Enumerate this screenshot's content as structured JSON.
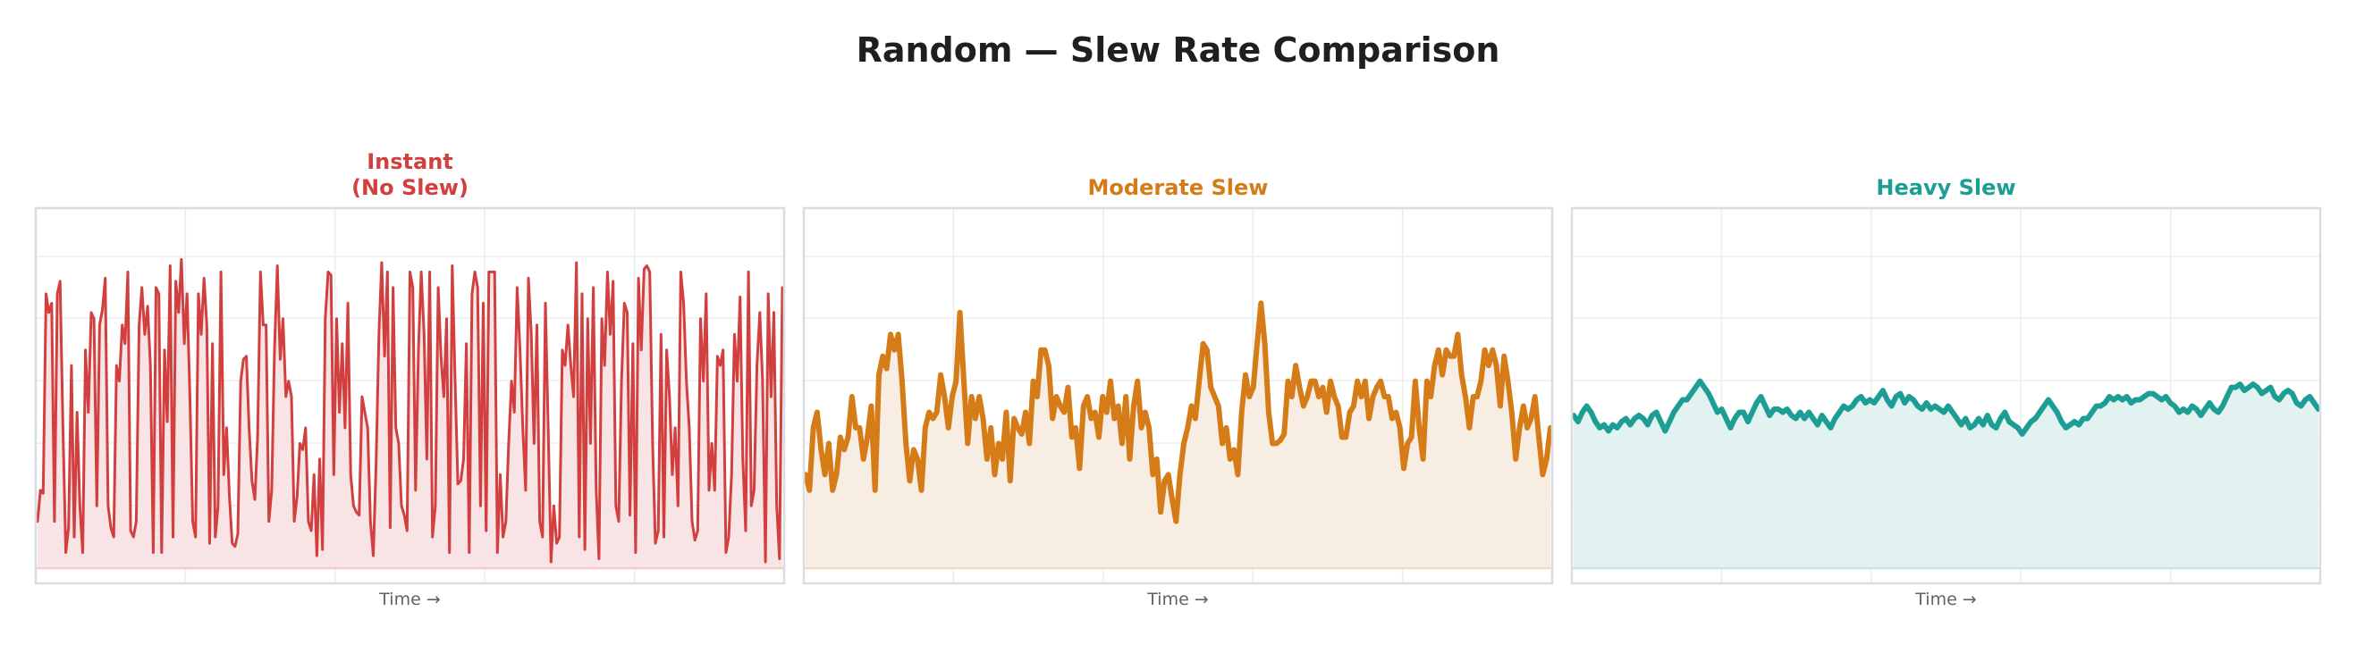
{
  "title": "Random — Slew Rate Comparison",
  "chart_data": [
    {
      "type": "line",
      "title": "Instant\n(No Slew)",
      "title_lines": [
        "Instant",
        "(No Slew)"
      ],
      "color": "#d13f3f",
      "fill": "#f8e4e5",
      "xlabel": "Time →",
      "ylabel": "",
      "ylim": [
        0,
        1
      ],
      "grid": true,
      "line_width": 3,
      "values": [
        0.15,
        0.25,
        0.24,
        0.88,
        0.82,
        0.85,
        0.15,
        0.88,
        0.92,
        0.45,
        0.05,
        0.13,
        0.65,
        0.1,
        0.5,
        0.2,
        0.05,
        0.7,
        0.5,
        0.82,
        0.8,
        0.2,
        0.78,
        0.83,
        0.93,
        0.2,
        0.13,
        0.1,
        0.65,
        0.6,
        0.78,
        0.72,
        0.95,
        0.12,
        0.1,
        0.15,
        0.78,
        0.9,
        0.75,
        0.84,
        0.65,
        0.05,
        0.9,
        0.88,
        0.05,
        0.7,
        0.47,
        0.97,
        0.1,
        0.92,
        0.82,
        0.99,
        0.72,
        0.88,
        0.55,
        0.15,
        0.1,
        0.88,
        0.75,
        0.93,
        0.78,
        0.08,
        0.72,
        0.1,
        0.2,
        0.95,
        0.3,
        0.45,
        0.23,
        0.08,
        0.07,
        0.11,
        0.6,
        0.67,
        0.68,
        0.45,
        0.28,
        0.22,
        0.42,
        0.95,
        0.78,
        0.78,
        0.15,
        0.25,
        0.7,
        0.97,
        0.67,
        0.8,
        0.55,
        0.6,
        0.55,
        0.15,
        0.23,
        0.4,
        0.38,
        0.45,
        0.15,
        0.12,
        0.3,
        0.04,
        0.35,
        0.06,
        0.8,
        0.95,
        0.94,
        0.3,
        0.8,
        0.5,
        0.72,
        0.45,
        0.85,
        0.3,
        0.2,
        0.18,
        0.17,
        0.55,
        0.5,
        0.45,
        0.15,
        0.04,
        0.33,
        0.75,
        0.98,
        0.68,
        0.95,
        0.13,
        0.9,
        0.45,
        0.4,
        0.2,
        0.17,
        0.12,
        0.95,
        0.9,
        0.25,
        0.7,
        0.95,
        0.75,
        0.35,
        0.95,
        0.1,
        0.2,
        0.9,
        0.68,
        0.55,
        0.8,
        0.05,
        0.97,
        0.6,
        0.27,
        0.28,
        0.35,
        0.72,
        0.05,
        0.88,
        0.95,
        0.9,
        0.2,
        0.85,
        0.12,
        0.95,
        0.95,
        0.95,
        0.05,
        0.3,
        0.1,
        0.15,
        0.4,
        0.6,
        0.5,
        0.9,
        0.7,
        0.45,
        0.25,
        0.93,
        0.75,
        0.4,
        0.78,
        0.15,
        0.1,
        0.85,
        0.45,
        0.02,
        0.2,
        0.08,
        0.1,
        0.7,
        0.65,
        0.78,
        0.65,
        0.55,
        0.98,
        0.1,
        0.88,
        0.06,
        0.8,
        0.4,
        0.9,
        0.25,
        0.03,
        0.8,
        0.65,
        0.95,
        0.75,
        0.92,
        0.2,
        0.15,
        0.6,
        0.85,
        0.82,
        0.17,
        0.72,
        0.05,
        0.93,
        0.7,
        0.96,
        0.97,
        0.95,
        0.4,
        0.08,
        0.12,
        0.75,
        0.1,
        0.7,
        0.55,
        0.3,
        0.45,
        0.2,
        0.95,
        0.85,
        0.6,
        0.45,
        0.15,
        0.09,
        0.12,
        0.8,
        0.6,
        0.88,
        0.25,
        0.4,
        0.25,
        0.68,
        0.65,
        0.7,
        0.05,
        0.1,
        0.3,
        0.75,
        0.6,
        0.87,
        0.35,
        0.12,
        0.95,
        0.2,
        0.25,
        0.65,
        0.82,
        0.6,
        0.02,
        0.88,
        0.55,
        0.82,
        0.2,
        0.03,
        0.9
      ]
    },
    {
      "type": "line",
      "title": "Moderate Slew",
      "title_lines": [
        "Moderate Slew"
      ],
      "color": "#d57b17",
      "fill": "#f7ede3",
      "xlabel": "Time →",
      "ylabel": "",
      "ylim": [
        0,
        1
      ],
      "grid": true,
      "line_width": 6,
      "values": [
        0.3,
        0.25,
        0.45,
        0.5,
        0.38,
        0.3,
        0.4,
        0.25,
        0.3,
        0.42,
        0.38,
        0.42,
        0.55,
        0.45,
        0.45,
        0.35,
        0.42,
        0.52,
        0.25,
        0.62,
        0.68,
        0.64,
        0.75,
        0.7,
        0.75,
        0.6,
        0.4,
        0.28,
        0.38,
        0.35,
        0.25,
        0.45,
        0.5,
        0.48,
        0.5,
        0.62,
        0.55,
        0.45,
        0.55,
        0.6,
        0.82,
        0.6,
        0.4,
        0.55,
        0.48,
        0.55,
        0.48,
        0.35,
        0.45,
        0.3,
        0.4,
        0.35,
        0.5,
        0.28,
        0.48,
        0.45,
        0.43,
        0.5,
        0.4,
        0.6,
        0.55,
        0.7,
        0.7,
        0.65,
        0.48,
        0.55,
        0.52,
        0.5,
        0.58,
        0.42,
        0.45,
        0.32,
        0.52,
        0.55,
        0.48,
        0.5,
        0.42,
        0.55,
        0.5,
        0.6,
        0.48,
        0.52,
        0.4,
        0.55,
        0.35,
        0.52,
        0.6,
        0.45,
        0.5,
        0.45,
        0.3,
        0.35,
        0.18,
        0.28,
        0.3,
        0.22,
        0.15,
        0.3,
        0.4,
        0.45,
        0.52,
        0.48,
        0.6,
        0.72,
        0.7,
        0.58,
        0.55,
        0.52,
        0.4,
        0.45,
        0.35,
        0.38,
        0.3,
        0.5,
        0.62,
        0.55,
        0.58,
        0.72,
        0.85,
        0.72,
        0.5,
        0.4,
        0.4,
        0.41,
        0.43,
        0.6,
        0.55,
        0.65,
        0.58,
        0.52,
        0.55,
        0.6,
        0.6,
        0.55,
        0.58,
        0.5,
        0.6,
        0.55,
        0.52,
        0.42,
        0.42,
        0.5,
        0.52,
        0.6,
        0.55,
        0.6,
        0.48,
        0.55,
        0.58,
        0.6,
        0.55,
        0.55,
        0.48,
        0.5,
        0.45,
        0.32,
        0.4,
        0.42,
        0.6,
        0.45,
        0.35,
        0.6,
        0.55,
        0.65,
        0.7,
        0.62,
        0.7,
        0.68,
        0.68,
        0.75,
        0.62,
        0.55,
        0.45,
        0.55,
        0.55,
        0.6,
        0.7,
        0.65,
        0.7,
        0.65,
        0.52,
        0.68,
        0.6,
        0.5,
        0.35,
        0.45,
        0.52,
        0.45,
        0.48,
        0.55,
        0.42,
        0.3,
        0.35,
        0.45
      ]
    },
    {
      "type": "line",
      "title": "Heavy Slew",
      "title_lines": [
        "Heavy Slew"
      ],
      "color": "#1c9e94",
      "fill": "#e2f2f0",
      "xlabel": "Time →",
      "ylabel": "",
      "ylim": [
        0,
        1
      ],
      "grid": true,
      "line_width": 6,
      "values": [
        0.49,
        0.47,
        0.5,
        0.52,
        0.5,
        0.47,
        0.45,
        0.46,
        0.44,
        0.46,
        0.45,
        0.47,
        0.48,
        0.46,
        0.48,
        0.49,
        0.48,
        0.46,
        0.49,
        0.5,
        0.47,
        0.44,
        0.47,
        0.5,
        0.52,
        0.54,
        0.54,
        0.56,
        0.58,
        0.6,
        0.58,
        0.56,
        0.53,
        0.5,
        0.51,
        0.48,
        0.45,
        0.48,
        0.5,
        0.5,
        0.47,
        0.5,
        0.53,
        0.55,
        0.52,
        0.49,
        0.51,
        0.51,
        0.5,
        0.51,
        0.49,
        0.48,
        0.5,
        0.48,
        0.5,
        0.48,
        0.46,
        0.49,
        0.47,
        0.45,
        0.48,
        0.5,
        0.52,
        0.51,
        0.52,
        0.54,
        0.55,
        0.53,
        0.54,
        0.53,
        0.55,
        0.57,
        0.54,
        0.52,
        0.55,
        0.56,
        0.53,
        0.55,
        0.54,
        0.52,
        0.51,
        0.53,
        0.51,
        0.52,
        0.51,
        0.5,
        0.52,
        0.5,
        0.48,
        0.46,
        0.48,
        0.45,
        0.46,
        0.48,
        0.46,
        0.49,
        0.46,
        0.45,
        0.48,
        0.5,
        0.47,
        0.46,
        0.45,
        0.43,
        0.45,
        0.47,
        0.48,
        0.5,
        0.52,
        0.54,
        0.52,
        0.5,
        0.47,
        0.45,
        0.46,
        0.47,
        0.46,
        0.48,
        0.48,
        0.5,
        0.52,
        0.52,
        0.53,
        0.55,
        0.54,
        0.55,
        0.54,
        0.55,
        0.53,
        0.54,
        0.54,
        0.55,
        0.56,
        0.56,
        0.55,
        0.54,
        0.55,
        0.53,
        0.52,
        0.5,
        0.51,
        0.5,
        0.52,
        0.51,
        0.49,
        0.51,
        0.53,
        0.51,
        0.5,
        0.52,
        0.55,
        0.58,
        0.58,
        0.59,
        0.57,
        0.58,
        0.59,
        0.58,
        0.56,
        0.57,
        0.58,
        0.55,
        0.54,
        0.56,
        0.57,
        0.56,
        0.53,
        0.52,
        0.54,
        0.55,
        0.53,
        0.51
      ]
    }
  ],
  "panels": [
    {
      "title_line1": "Instant",
      "title_line2": "(No Slew)",
      "xlabel": "Time →"
    },
    {
      "title_line1": "",
      "title_line2": "Moderate Slew",
      "xlabel": "Time →"
    },
    {
      "title_line1": "",
      "title_line2": "Heavy Slew",
      "xlabel": "Time →"
    }
  ],
  "colors": {
    "title": "#1f1f1f",
    "axis_border": "#d9dde2",
    "gridline": "#ebedf0",
    "xlabel": "#5f6368"
  }
}
